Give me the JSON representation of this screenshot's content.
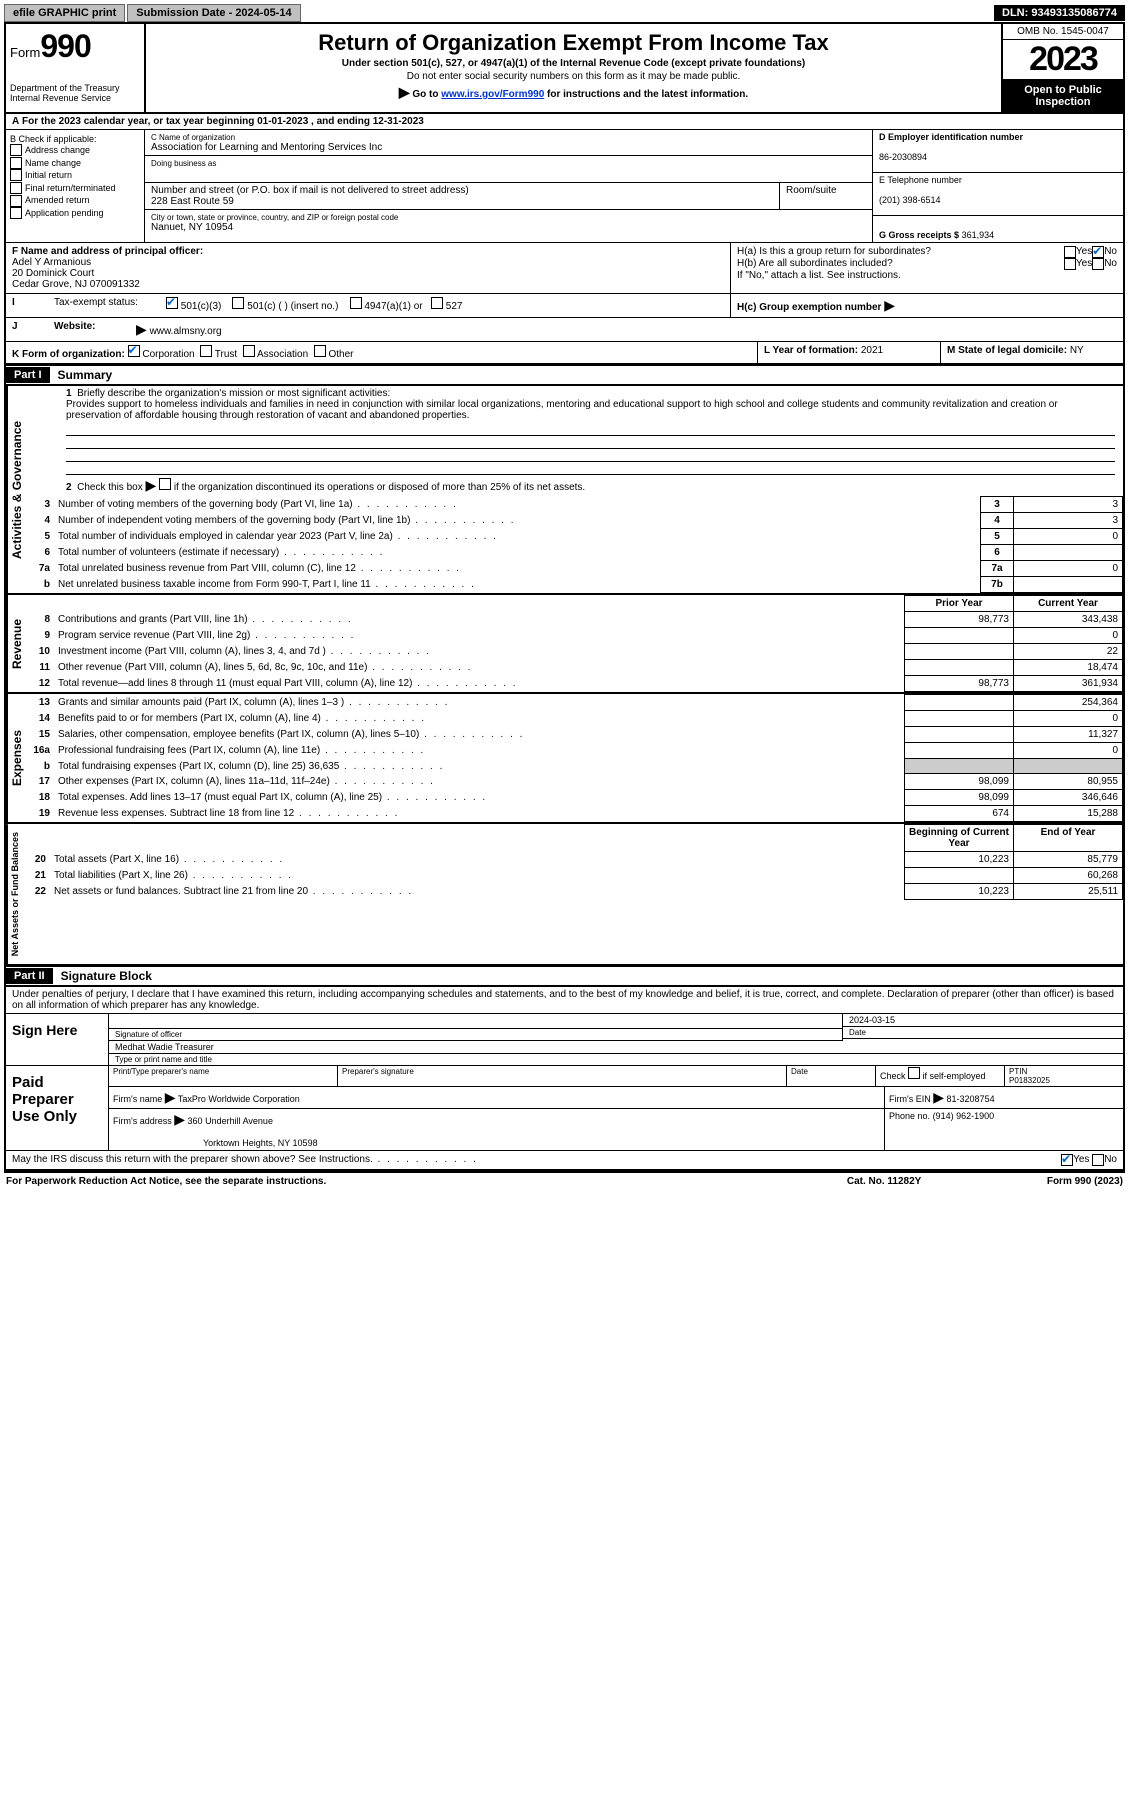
{
  "topbar": {
    "efile": "efile GRAPHIC print",
    "submission": "Submission Date - 2024-05-14",
    "dln": "DLN: 93493135086774"
  },
  "header": {
    "form_label": "Form",
    "form_num": "990",
    "dept": "Department of the Treasury",
    "irs": "Internal Revenue Service",
    "title": "Return of Organization Exempt From Income Tax",
    "sub1": "Under section 501(c), 527, or 4947(a)(1) of the Internal Revenue Code (except private foundations)",
    "sub2": "Do not enter social security numbers on this form as it may be made public.",
    "sub3_pre": "Go to ",
    "sub3_link": "www.irs.gov/Form990",
    "sub3_post": " for instructions and the latest information.",
    "omb": "OMB No. 1545-0047",
    "year": "2023",
    "open": "Open to Public Inspection"
  },
  "lineA": "For the 2023 calendar year, or tax year beginning 01-01-2023   , and ending 12-31-2023",
  "B": {
    "label": "B Check if applicable:",
    "opts": [
      "Address change",
      "Name change",
      "Initial return",
      "Final return/terminated",
      "Amended return",
      "Application pending"
    ]
  },
  "C": {
    "name_label": "C Name of organization",
    "name": "Association for Learning and Mentoring Services Inc",
    "dba_label": "Doing business as",
    "addr_label": "Number and street (or P.O. box if mail is not delivered to street address)",
    "room_label": "Room/suite",
    "addr": "228 East Route 59",
    "city_label": "City or town, state or province, country, and ZIP or foreign postal code",
    "city": "Nanuet, NY  10954"
  },
  "D": {
    "label": "D Employer identification number",
    "val": "86-2030894"
  },
  "E": {
    "label": "E Telephone number",
    "val": "(201) 398-6514"
  },
  "G": {
    "label": "G Gross receipts $",
    "val": "361,934"
  },
  "F": {
    "label": "F  Name and address of principal officer:",
    "name": "Adel Y Armanious",
    "addr1": "20 Dominick Court",
    "addr2": "Cedar Grove, NJ  070091332"
  },
  "H": {
    "a": "H(a)  Is this a group return for subordinates?",
    "b": "H(b)  Are all subordinates included?",
    "b2": "If \"No,\" attach a list. See instructions.",
    "c": "H(c)  Group exemption number",
    "yes": "Yes",
    "no": "No"
  },
  "I": {
    "label": "Tax-exempt status:",
    "o1": "501(c)(3)",
    "o2": "501(c) (  ) (insert no.)",
    "o3": "4947(a)(1) or",
    "o4": "527"
  },
  "J": {
    "label": "Website:",
    "val": "www.almsny.org"
  },
  "K": {
    "label": "K Form of organization:",
    "o1": "Corporation",
    "o2": "Trust",
    "o3": "Association",
    "o4": "Other"
  },
  "L": {
    "label": "L Year of formation:",
    "val": "2021"
  },
  "M": {
    "label": "M State of legal domicile:",
    "val": "NY"
  },
  "part1": {
    "hdr": "Part I",
    "title": "Summary",
    "l1": "Briefly describe the organization's mission or most significant activities:",
    "mission": "Provides support to homeless individuals and families in need in conjunction with similar local organizations, mentoring and educational support to high school and college students and community revitalization and creation or preservation of affordable housing through restoration of vacant and abandoned properties.",
    "l2": "Check this box      if the organization discontinued its operations or disposed of more than 25% of its net assets.",
    "gov_label": "Activities & Governance",
    "rev_label": "Revenue",
    "exp_label": "Expenses",
    "net_label": "Net Assets or Fund Balances",
    "rows_gov": [
      {
        "n": "3",
        "d": "Number of voting members of the governing body (Part VI, line 1a)",
        "ln": "3",
        "v": "3"
      },
      {
        "n": "4",
        "d": "Number of independent voting members of the governing body (Part VI, line 1b)",
        "ln": "4",
        "v": "3"
      },
      {
        "n": "5",
        "d": "Total number of individuals employed in calendar year 2023 (Part V, line 2a)",
        "ln": "5",
        "v": "0"
      },
      {
        "n": "6",
        "d": "Total number of volunteers (estimate if necessary)",
        "ln": "6",
        "v": ""
      },
      {
        "n": "7a",
        "d": "Total unrelated business revenue from Part VIII, column (C), line 12",
        "ln": "7a",
        "v": "0"
      },
      {
        "n": "b",
        "d": "Net unrelated business taxable income from Form 990-T, Part I, line 11",
        "ln": "7b",
        "v": ""
      }
    ],
    "col_prior": "Prior Year",
    "col_curr": "Current Year",
    "col_beg": "Beginning of Current Year",
    "col_end": "End of Year",
    "rows_rev": [
      {
        "n": "8",
        "d": "Contributions and grants (Part VIII, line 1h)",
        "p": "98,773",
        "c": "343,438"
      },
      {
        "n": "9",
        "d": "Program service revenue (Part VIII, line 2g)",
        "p": "",
        "c": "0"
      },
      {
        "n": "10",
        "d": "Investment income (Part VIII, column (A), lines 3, 4, and 7d )",
        "p": "",
        "c": "22"
      },
      {
        "n": "11",
        "d": "Other revenue (Part VIII, column (A), lines 5, 6d, 8c, 9c, 10c, and 11e)",
        "p": "",
        "c": "18,474"
      },
      {
        "n": "12",
        "d": "Total revenue—add lines 8 through 11 (must equal Part VIII, column (A), line 12)",
        "p": "98,773",
        "c": "361,934"
      }
    ],
    "rows_exp": [
      {
        "n": "13",
        "d": "Grants and similar amounts paid (Part IX, column (A), lines 1–3 )",
        "p": "",
        "c": "254,364"
      },
      {
        "n": "14",
        "d": "Benefits paid to or for members (Part IX, column (A), line 4)",
        "p": "",
        "c": "0"
      },
      {
        "n": "15",
        "d": "Salaries, other compensation, employee benefits (Part IX, column (A), lines 5–10)",
        "p": "",
        "c": "11,327"
      },
      {
        "n": "16a",
        "d": "Professional fundraising fees (Part IX, column (A), line 11e)",
        "p": "",
        "c": "0"
      },
      {
        "n": "b",
        "d": "Total fundraising expenses (Part IX, column (D), line 25) 36,635",
        "p": "gray",
        "c": "gray"
      },
      {
        "n": "17",
        "d": "Other expenses (Part IX, column (A), lines 11a–11d, 11f–24e)",
        "p": "98,099",
        "c": "80,955"
      },
      {
        "n": "18",
        "d": "Total expenses. Add lines 13–17 (must equal Part IX, column (A), line 25)",
        "p": "98,099",
        "c": "346,646"
      },
      {
        "n": "19",
        "d": "Revenue less expenses. Subtract line 18 from line 12",
        "p": "674",
        "c": "15,288"
      }
    ],
    "rows_net": [
      {
        "n": "20",
        "d": "Total assets (Part X, line 16)",
        "p": "10,223",
        "c": "85,779"
      },
      {
        "n": "21",
        "d": "Total liabilities (Part X, line 26)",
        "p": "",
        "c": "60,268"
      },
      {
        "n": "22",
        "d": "Net assets or fund balances. Subtract line 21 from line 20",
        "p": "10,223",
        "c": "25,511"
      }
    ]
  },
  "part2": {
    "hdr": "Part II",
    "title": "Signature Block",
    "perjury": "Under penalties of perjury, I declare that I have examined this return, including accompanying schedules and statements, and to the best of my knowledge and belief, it is true, correct, and complete. Declaration of preparer (other than officer) is based on all information of which preparer has any knowledge."
  },
  "sign": {
    "here": "Sign Here",
    "sig_officer": "Signature of officer",
    "date": "Date",
    "date_val": "2024-03-15",
    "name": "Medhat Wadie  Treasurer",
    "type_name": "Type or print name and title"
  },
  "paid": {
    "label": "Paid Preparer Use Only",
    "pt_name": "Print/Type preparer's name",
    "sig": "Preparer's signature",
    "date": "Date",
    "check": "Check        if self-employed",
    "ptin": "PTIN",
    "ptin_val": "P01832025",
    "firm_name": "Firm's name",
    "firm_name_val": "TaxPro Worldwide Corporation",
    "firm_ein": "Firm's EIN",
    "firm_ein_val": "81-3208754",
    "firm_addr": "Firm's address",
    "firm_addr_val": "360 Underhill Avenue",
    "firm_city": "Yorktown Heights, NY  10598",
    "phone": "Phone no.",
    "phone_val": "(914) 962-1900"
  },
  "discuss": "May the IRS discuss this return with the preparer shown above? See Instructions.",
  "footer": {
    "left": "For Paperwork Reduction Act Notice, see the separate instructions.",
    "mid": "Cat. No. 11282Y",
    "right": "Form 990 (2023)"
  }
}
